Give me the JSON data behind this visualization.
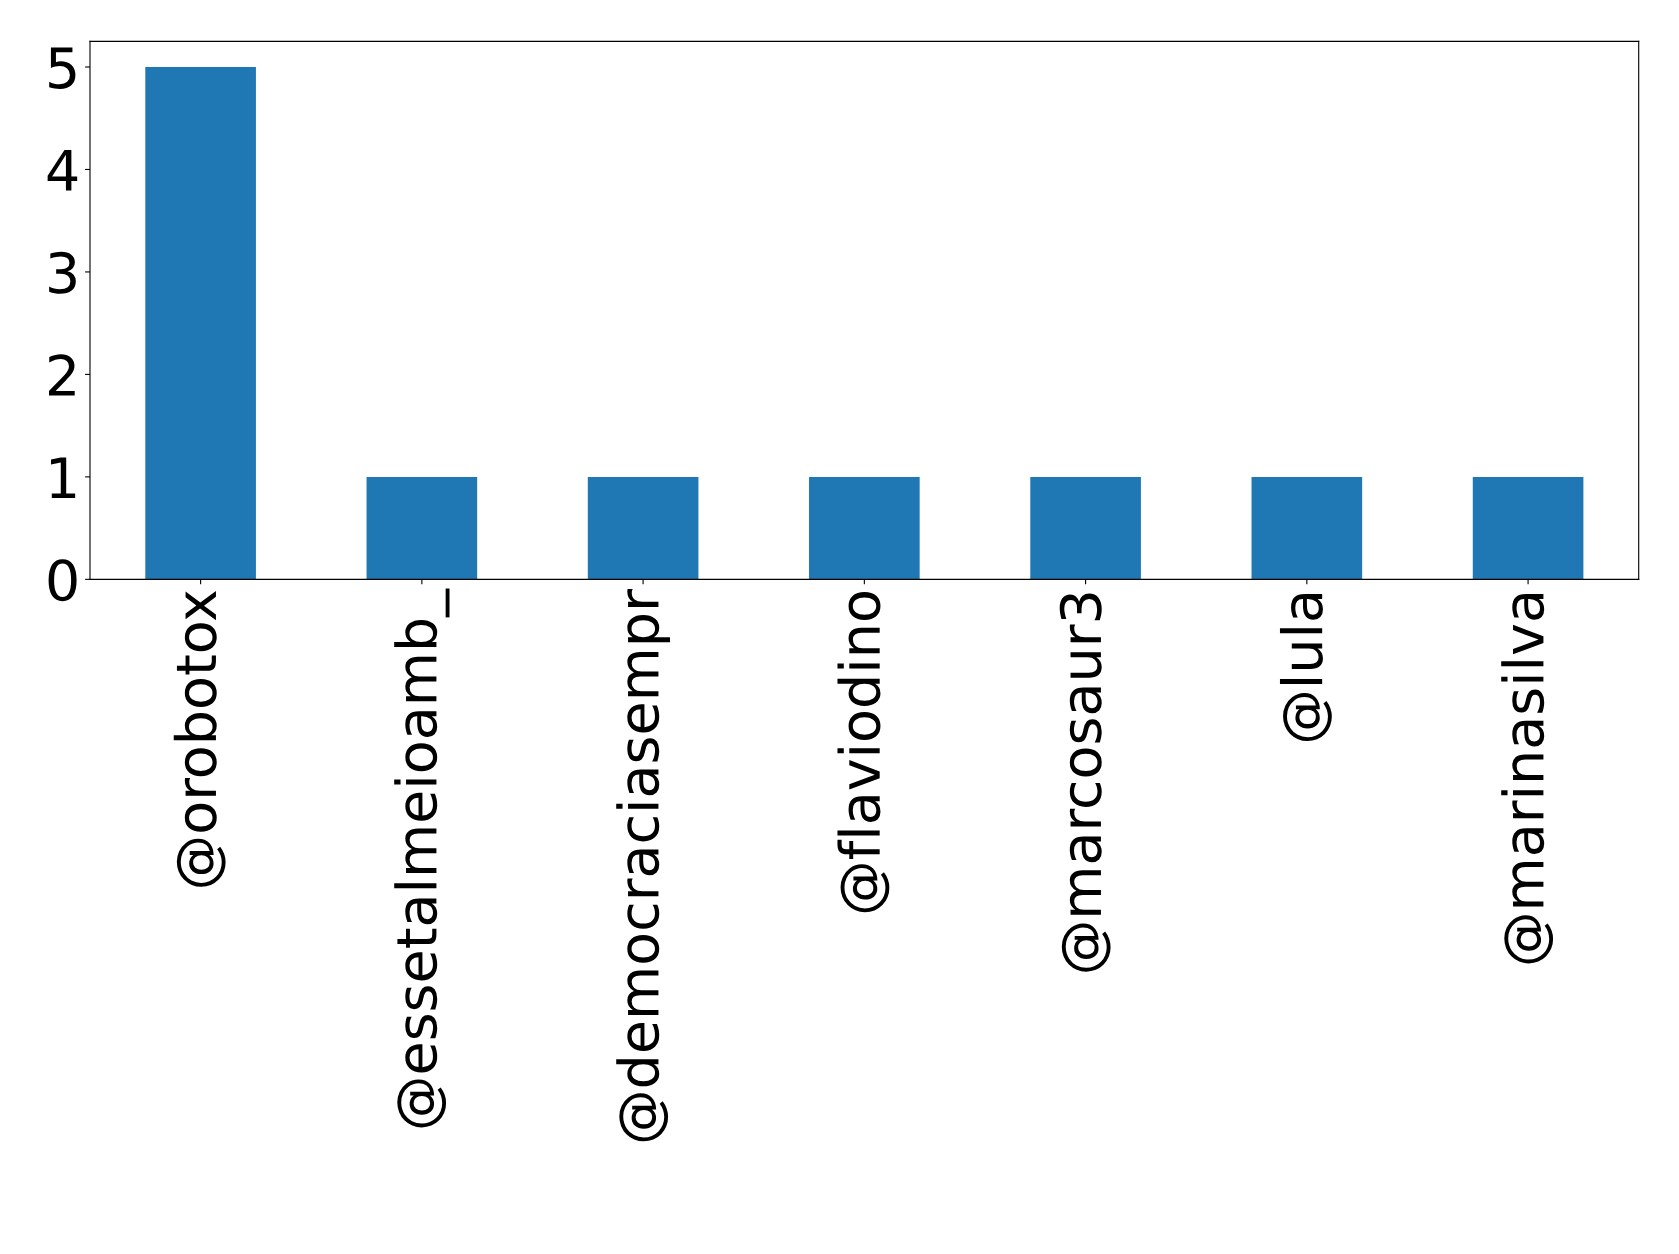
{
  "chart_data": {
    "type": "bar",
    "categories": [
      "@orobotox",
      "@essetalmeioamb_",
      "@democraciasempr",
      "@flaviodino",
      "@marcosaur3",
      "@lula",
      "@marinasilva"
    ],
    "values": [
      5,
      1,
      1,
      1,
      1,
      1,
      1
    ],
    "color": "#1f77b4",
    "ylim": [
      0,
      5.25
    ],
    "yticks": [
      0,
      1,
      2,
      3,
      4,
      5
    ],
    "grid": false,
    "legend": false
  }
}
